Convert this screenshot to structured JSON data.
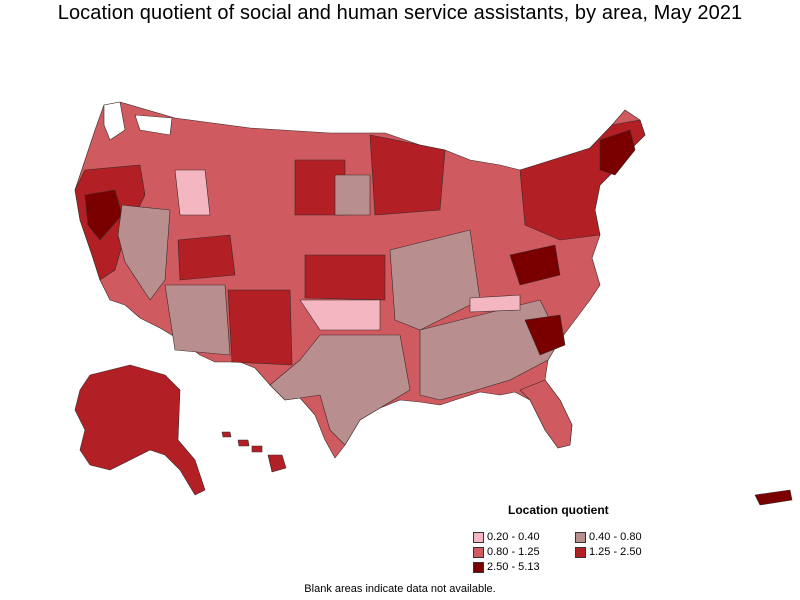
{
  "title": "Location quotient of social and human service assistants, by area, May 2021",
  "legend": {
    "title": "Location quotient",
    "items": [
      {
        "label": "0.20 - 0.40",
        "color": "#f4b6c0"
      },
      {
        "label": "0.40 - 0.80",
        "color": "#b88e8f"
      },
      {
        "label": "0.80 - 1.25",
        "color": "#cf5a5f"
      },
      {
        "label": "1.25 - 2.50",
        "color": "#b21f25"
      },
      {
        "label": "2.50 - 5.13",
        "color": "#7a0000"
      }
    ]
  },
  "footnote": "Blank areas indicate data not available.",
  "colors": {
    "border": "#3a2a2a",
    "no_data": "#ffffff"
  }
}
